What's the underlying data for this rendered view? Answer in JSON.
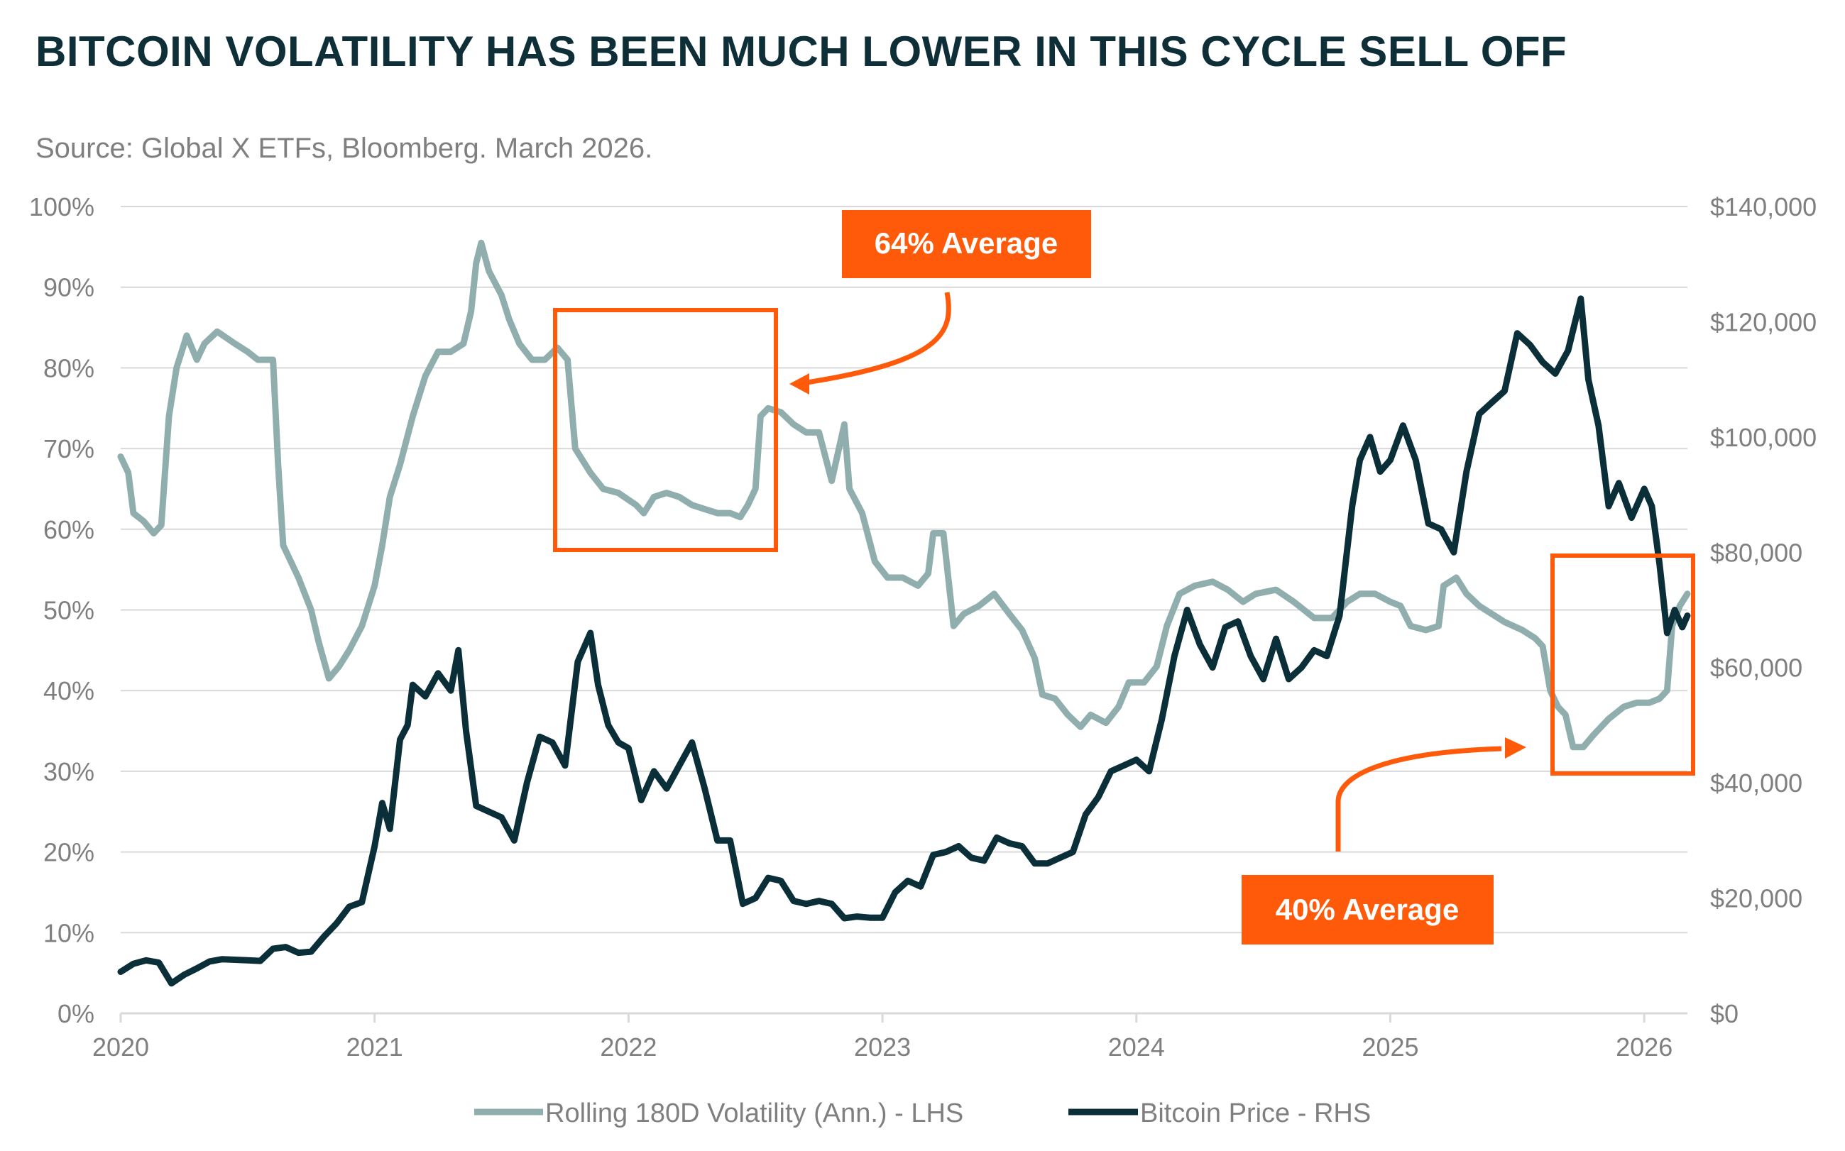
{
  "title": "BITCOIN VOLATILITY HAS BEEN MUCH LOWER IN THIS CYCLE SELL OFF",
  "source": "Source: Global X ETFs, Bloomberg. March 2026.",
  "colors": {
    "volatility": "#8faead",
    "price": "#0b2f38",
    "accent": "#ff5a0a",
    "grid": "#d9d9d9",
    "axis_text": "#7f7f7f"
  },
  "callouts": {
    "cycle_2022": "64% Average",
    "cycle_2026": "40% Average"
  },
  "chart_data": {
    "type": "line",
    "title": "BITCOIN VOLATILITY HAS BEEN MUCH LOWER IN THIS CYCLE SELL OFF",
    "x_ticks": [
      "2020",
      "2021",
      "2022",
      "2023",
      "2024",
      "2025",
      "2026"
    ],
    "xlim": [
      2020.0,
      2026.17
    ],
    "y_left": {
      "label": "Rolling 180D Volatility (Ann.) - LHS",
      "ticks": [
        "0%",
        "10%",
        "20%",
        "30%",
        "40%",
        "50%",
        "60%",
        "70%",
        "80%",
        "90%",
        "100%"
      ],
      "ylim": [
        0,
        100
      ]
    },
    "y_right": {
      "label": "Bitcoin Price - RHS",
      "ticks": [
        "$0",
        "$20,000",
        "$40,000",
        "$60,000",
        "$80,000",
        "$100,000",
        "$120,000",
        "$140,000"
      ],
      "ylim": [
        0,
        140000
      ]
    },
    "grid": true,
    "legend_position": "bottom-center",
    "highlight_boxes": [
      {
        "label": "64% Average",
        "x_range": [
          2021.71,
          2022.59
        ]
      },
      {
        "label": "40% Average",
        "x_range": [
          2025.63,
          2026.2
        ]
      }
    ],
    "series": [
      {
        "name": "Rolling 180D Volatility (Ann.) - LHS",
        "axis": "left",
        "unit": "%",
        "points": [
          [
            2020.0,
            69
          ],
          [
            2020.03,
            67
          ],
          [
            2020.05,
            62
          ],
          [
            2020.09,
            61
          ],
          [
            2020.13,
            59.5
          ],
          [
            2020.16,
            60.5
          ],
          [
            2020.19,
            74
          ],
          [
            2020.22,
            80
          ],
          [
            2020.26,
            84
          ],
          [
            2020.3,
            81
          ],
          [
            2020.33,
            83
          ],
          [
            2020.38,
            84.5
          ],
          [
            2020.45,
            83
          ],
          [
            2020.5,
            82
          ],
          [
            2020.54,
            81
          ],
          [
            2020.6,
            81
          ],
          [
            2020.62,
            68
          ],
          [
            2020.64,
            58
          ],
          [
            2020.7,
            54
          ],
          [
            2020.75,
            50
          ],
          [
            2020.78,
            46
          ],
          [
            2020.82,
            41.5
          ],
          [
            2020.86,
            43
          ],
          [
            2020.9,
            45
          ],
          [
            2020.95,
            48
          ],
          [
            2021.0,
            53
          ],
          [
            2021.03,
            58
          ],
          [
            2021.06,
            64
          ],
          [
            2021.1,
            68
          ],
          [
            2021.15,
            74
          ],
          [
            2021.2,
            79
          ],
          [
            2021.25,
            82
          ],
          [
            2021.3,
            82
          ],
          [
            2021.35,
            83
          ],
          [
            2021.38,
            87
          ],
          [
            2021.4,
            93
          ],
          [
            2021.42,
            95.5
          ],
          [
            2021.45,
            92
          ],
          [
            2021.5,
            89
          ],
          [
            2021.53,
            86
          ],
          [
            2021.57,
            83
          ],
          [
            2021.62,
            81
          ],
          [
            2021.67,
            81
          ],
          [
            2021.72,
            82.5
          ],
          [
            2021.76,
            81
          ],
          [
            2021.79,
            70
          ],
          [
            2021.85,
            67
          ],
          [
            2021.9,
            65
          ],
          [
            2021.96,
            64.5
          ],
          [
            2022.03,
            63
          ],
          [
            2022.06,
            62
          ],
          [
            2022.1,
            64
          ],
          [
            2022.15,
            64.5
          ],
          [
            2022.2,
            64
          ],
          [
            2022.25,
            63
          ],
          [
            2022.3,
            62.5
          ],
          [
            2022.35,
            62
          ],
          [
            2022.4,
            62
          ],
          [
            2022.44,
            61.5
          ],
          [
            2022.47,
            63
          ],
          [
            2022.5,
            65
          ],
          [
            2022.52,
            74
          ],
          [
            2022.55,
            75
          ],
          [
            2022.6,
            74.5
          ],
          [
            2022.65,
            73
          ],
          [
            2022.7,
            72
          ],
          [
            2022.75,
            72
          ],
          [
            2022.8,
            66
          ],
          [
            2022.85,
            73
          ],
          [
            2022.87,
            65
          ],
          [
            2022.92,
            62
          ],
          [
            2022.97,
            56
          ],
          [
            2023.02,
            54
          ],
          [
            2023.08,
            54
          ],
          [
            2023.14,
            53
          ],
          [
            2023.18,
            54.5
          ],
          [
            2023.2,
            59.5
          ],
          [
            2023.24,
            59.5
          ],
          [
            2023.28,
            48
          ],
          [
            2023.32,
            49.5
          ],
          [
            2023.38,
            50.5
          ],
          [
            2023.44,
            52
          ],
          [
            2023.5,
            49.5
          ],
          [
            2023.55,
            47.5
          ],
          [
            2023.6,
            44
          ],
          [
            2023.63,
            39.5
          ],
          [
            2023.68,
            39
          ],
          [
            2023.73,
            37
          ],
          [
            2023.78,
            35.5
          ],
          [
            2023.82,
            37
          ],
          [
            2023.88,
            36
          ],
          [
            2023.93,
            38
          ],
          [
            2023.97,
            41
          ],
          [
            2024.03,
            41
          ],
          [
            2024.08,
            43
          ],
          [
            2024.12,
            48
          ],
          [
            2024.17,
            52
          ],
          [
            2024.23,
            53
          ],
          [
            2024.3,
            53.5
          ],
          [
            2024.36,
            52.5
          ],
          [
            2024.42,
            51
          ],
          [
            2024.47,
            52
          ],
          [
            2024.55,
            52.5
          ],
          [
            2024.62,
            51
          ],
          [
            2024.7,
            49
          ],
          [
            2024.77,
            49
          ],
          [
            2024.83,
            51
          ],
          [
            2024.88,
            52
          ],
          [
            2024.94,
            52
          ],
          [
            2025.0,
            51
          ],
          [
            2025.04,
            50.5
          ],
          [
            2025.08,
            48
          ],
          [
            2025.14,
            47.5
          ],
          [
            2025.19,
            48
          ],
          [
            2025.21,
            53
          ],
          [
            2025.26,
            54
          ],
          [
            2025.3,
            52
          ],
          [
            2025.35,
            50.5
          ],
          [
            2025.4,
            49.5
          ],
          [
            2025.45,
            48.5
          ],
          [
            2025.52,
            47.5
          ],
          [
            2025.57,
            46.5
          ],
          [
            2025.6,
            45.5
          ],
          [
            2025.63,
            40
          ],
          [
            2025.66,
            38
          ],
          [
            2025.69,
            37
          ],
          [
            2025.72,
            33
          ],
          [
            2025.76,
            33
          ],
          [
            2025.8,
            34.5
          ],
          [
            2025.86,
            36.5
          ],
          [
            2025.92,
            38
          ],
          [
            2025.97,
            38.5
          ],
          [
            2026.02,
            38.5
          ],
          [
            2026.06,
            39
          ],
          [
            2026.09,
            40
          ],
          [
            2026.11,
            48
          ],
          [
            2026.14,
            50.5
          ],
          [
            2026.17,
            52
          ]
        ]
      },
      {
        "name": "Bitcoin Price - RHS",
        "axis": "right",
        "unit": "USD",
        "points": [
          [
            2020.0,
            7200
          ],
          [
            2020.05,
            8600
          ],
          [
            2020.1,
            9200
          ],
          [
            2020.15,
            8800
          ],
          [
            2020.2,
            5200
          ],
          [
            2020.25,
            6700
          ],
          [
            2020.3,
            7800
          ],
          [
            2020.35,
            9000
          ],
          [
            2020.4,
            9400
          ],
          [
            2020.45,
            9300
          ],
          [
            2020.5,
            9200
          ],
          [
            2020.55,
            9100
          ],
          [
            2020.6,
            11200
          ],
          [
            2020.65,
            11500
          ],
          [
            2020.7,
            10500
          ],
          [
            2020.75,
            10700
          ],
          [
            2020.8,
            13300
          ],
          [
            2020.85,
            15600
          ],
          [
            2020.9,
            18500
          ],
          [
            2020.95,
            19300
          ],
          [
            2021.0,
            29000
          ],
          [
            2021.03,
            36500
          ],
          [
            2021.06,
            32000
          ],
          [
            2021.1,
            47500
          ],
          [
            2021.13,
            50000
          ],
          [
            2021.15,
            57000
          ],
          [
            2021.2,
            55000
          ],
          [
            2021.25,
            59000
          ],
          [
            2021.3,
            56000
          ],
          [
            2021.33,
            63000
          ],
          [
            2021.36,
            49000
          ],
          [
            2021.4,
            36000
          ],
          [
            2021.45,
            35000
          ],
          [
            2021.5,
            34000
          ],
          [
            2021.55,
            30000
          ],
          [
            2021.6,
            40000
          ],
          [
            2021.65,
            48000
          ],
          [
            2021.7,
            47000
          ],
          [
            2021.75,
            43000
          ],
          [
            2021.8,
            61000
          ],
          [
            2021.85,
            66000
          ],
          [
            2021.88,
            57000
          ],
          [
            2021.92,
            50000
          ],
          [
            2021.96,
            47000
          ],
          [
            2022.0,
            46000
          ],
          [
            2022.05,
            37000
          ],
          [
            2022.1,
            42000
          ],
          [
            2022.15,
            39000
          ],
          [
            2022.2,
            43000
          ],
          [
            2022.25,
            47000
          ],
          [
            2022.3,
            39000
          ],
          [
            2022.35,
            30000
          ],
          [
            2022.4,
            30000
          ],
          [
            2022.45,
            19000
          ],
          [
            2022.5,
            20000
          ],
          [
            2022.55,
            23500
          ],
          [
            2022.6,
            23000
          ],
          [
            2022.65,
            19500
          ],
          [
            2022.7,
            19000
          ],
          [
            2022.75,
            19500
          ],
          [
            2022.8,
            19000
          ],
          [
            2022.85,
            16500
          ],
          [
            2022.9,
            16800
          ],
          [
            2022.95,
            16600
          ],
          [
            2023.0,
            16600
          ],
          [
            2023.05,
            21000
          ],
          [
            2023.1,
            23000
          ],
          [
            2023.15,
            22000
          ],
          [
            2023.2,
            27500
          ],
          [
            2023.25,
            28000
          ],
          [
            2023.3,
            29000
          ],
          [
            2023.35,
            27000
          ],
          [
            2023.4,
            26500
          ],
          [
            2023.45,
            30500
          ],
          [
            2023.5,
            29500
          ],
          [
            2023.55,
            29000
          ],
          [
            2023.6,
            26000
          ],
          [
            2023.65,
            26000
          ],
          [
            2023.7,
            27000
          ],
          [
            2023.75,
            28000
          ],
          [
            2023.8,
            34500
          ],
          [
            2023.85,
            37500
          ],
          [
            2023.9,
            42000
          ],
          [
            2023.95,
            43000
          ],
          [
            2024.0,
            44000
          ],
          [
            2024.05,
            42000
          ],
          [
            2024.1,
            51000
          ],
          [
            2024.15,
            62000
          ],
          [
            2024.2,
            70000
          ],
          [
            2024.25,
            64000
          ],
          [
            2024.3,
            60000
          ],
          [
            2024.35,
            67000
          ],
          [
            2024.4,
            68000
          ],
          [
            2024.45,
            62000
          ],
          [
            2024.5,
            58000
          ],
          [
            2024.55,
            65000
          ],
          [
            2024.6,
            58000
          ],
          [
            2024.65,
            60000
          ],
          [
            2024.7,
            63000
          ],
          [
            2024.75,
            62000
          ],
          [
            2024.8,
            69000
          ],
          [
            2024.85,
            88000
          ],
          [
            2024.88,
            96000
          ],
          [
            2024.92,
            100000
          ],
          [
            2024.96,
            94000
          ],
          [
            2025.0,
            96000
          ],
          [
            2025.05,
            102000
          ],
          [
            2025.1,
            96000
          ],
          [
            2025.15,
            85000
          ],
          [
            2025.2,
            84000
          ],
          [
            2025.25,
            80000
          ],
          [
            2025.3,
            94000
          ],
          [
            2025.35,
            104000
          ],
          [
            2025.4,
            106000
          ],
          [
            2025.45,
            108000
          ],
          [
            2025.5,
            118000
          ],
          [
            2025.55,
            116000
          ],
          [
            2025.6,
            113000
          ],
          [
            2025.65,
            111000
          ],
          [
            2025.7,
            115000
          ],
          [
            2025.75,
            124000
          ],
          [
            2025.78,
            110000
          ],
          [
            2025.82,
            102000
          ],
          [
            2025.86,
            88000
          ],
          [
            2025.9,
            92000
          ],
          [
            2025.95,
            86000
          ],
          [
            2026.0,
            91000
          ],
          [
            2026.03,
            88000
          ],
          [
            2026.06,
            78000
          ],
          [
            2026.09,
            66000
          ],
          [
            2026.12,
            70000
          ],
          [
            2026.15,
            67000
          ],
          [
            2026.17,
            69000
          ]
        ]
      }
    ]
  }
}
